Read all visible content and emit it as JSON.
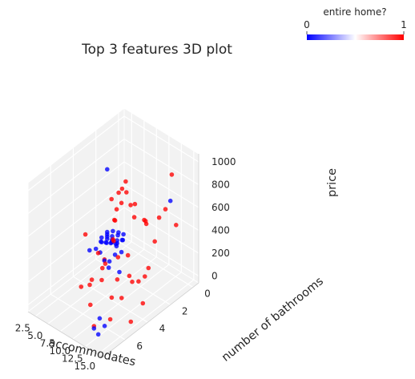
{
  "chart_data": {
    "type": "scatter",
    "projection": "3d",
    "title": "Top 3 features 3D plot",
    "x": {
      "label": "accommodates",
      "lim": [
        1,
        16
      ],
      "ticks": [
        2.5,
        5.0,
        7.5,
        10.0,
        12.5,
        15.0
      ],
      "tick_labels": [
        "2.5",
        "5.0",
        "7.5",
        "10.0",
        "12.5",
        "15.0"
      ]
    },
    "y": {
      "label": "number of bathrooms",
      "lim": [
        -0.5,
        8
      ],
      "ticks": [
        0,
        2,
        4,
        6
      ],
      "tick_labels": [
        "0",
        "2",
        "4",
        "6"
      ]
    },
    "z": {
      "label": "price",
      "lim": [
        -60,
        1070
      ],
      "ticks": [
        0,
        200,
        400,
        600,
        800,
        1000
      ],
      "tick_labels": [
        "0",
        "200",
        "400",
        "600",
        "800",
        "1000"
      ]
    },
    "colorbar": {
      "label": "entire home?",
      "min": 0,
      "max": 1,
      "min_label": "0",
      "max_label": "1",
      "colors": [
        "#0000ff",
        "#ffffff",
        "#ff0000"
      ]
    },
    "grid": true,
    "pane_color": "#f2f2f2",
    "series": [
      {
        "color_value": 1,
        "color": "#ff0000",
        "points": [
          [
            14,
            1.0,
            950
          ],
          [
            12,
            5.0,
            900
          ],
          [
            9,
            3.5,
            850
          ],
          [
            7,
            2.0,
            780
          ],
          [
            10,
            2.5,
            700
          ],
          [
            11,
            3.0,
            650
          ],
          [
            6,
            1.5,
            620
          ],
          [
            8,
            2.0,
            600
          ],
          [
            13,
            3.0,
            680
          ],
          [
            15,
            2.0,
            750
          ],
          [
            16,
            3.0,
            780
          ],
          [
            12,
            4.0,
            420
          ],
          [
            10,
            4.0,
            350
          ],
          [
            13,
            3.5,
            180
          ],
          [
            14,
            4.5,
            280
          ],
          [
            9,
            5.0,
            200
          ],
          [
            8,
            6.0,
            650
          ],
          [
            10,
            6.5,
            300
          ],
          [
            15,
            4.0,
            80
          ],
          [
            12,
            2.5,
            120
          ],
          [
            16,
            5.5,
            60
          ],
          [
            13,
            6.0,
            40
          ],
          [
            11,
            5.0,
            100
          ],
          [
            10,
            3.0,
            110
          ],
          [
            12,
            7.0,
            30
          ],
          [
            9,
            4.0,
            480
          ],
          [
            7,
            3.0,
            520
          ],
          [
            8,
            3.5,
            400
          ],
          [
            6,
            2.5,
            450
          ],
          [
            5,
            1.5,
            500
          ],
          [
            11,
            2.0,
            540
          ],
          [
            14,
            2.5,
            480
          ],
          [
            6,
            4.0,
            280
          ],
          [
            7,
            5.0,
            150
          ],
          [
            9,
            6.0,
            60
          ],
          [
            4,
            1.0,
            560
          ],
          [
            3,
            1.5,
            480
          ],
          [
            16,
            1.5,
            600
          ],
          [
            15,
            3.5,
            350
          ],
          [
            12,
            6.0,
            500
          ],
          [
            5,
            3.0,
            120
          ],
          [
            8,
            4.5,
            240
          ],
          [
            6,
            5.5,
            100
          ],
          [
            11,
            4.5,
            220
          ],
          [
            13,
            5.0,
            150
          ],
          [
            10,
            1.5,
            450
          ]
        ]
      },
      {
        "color_value": 0,
        "color": "#0000ff",
        "points": [
          [
            1,
            1.0,
            60
          ],
          [
            1,
            1.0,
            80
          ],
          [
            1,
            1.5,
            50
          ],
          [
            1,
            1.0,
            40
          ],
          [
            2,
            1.0,
            60
          ],
          [
            2,
            1.0,
            90
          ],
          [
            2,
            1.5,
            70
          ],
          [
            2,
            2.0,
            120
          ],
          [
            1,
            2.0,
            30
          ],
          [
            3,
            1.0,
            80
          ],
          [
            3,
            1.5,
            100
          ],
          [
            2,
            1.0,
            50
          ],
          [
            1,
            0.5,
            70
          ],
          [
            2,
            0.5,
            60
          ],
          [
            3,
            2.0,
            140
          ],
          [
            4,
            1.0,
            110
          ],
          [
            1,
            1.0,
            100
          ],
          [
            2,
            1.0,
            40
          ],
          [
            3,
            1.0,
            55
          ],
          [
            1,
            1.5,
            90
          ],
          [
            4,
            2.0,
            160
          ],
          [
            5,
            2.0,
            180
          ],
          [
            6,
            2.5,
            150
          ],
          [
            3,
            2.5,
            90
          ],
          [
            2,
            3.0,
            120
          ],
          [
            5,
            3.0,
            110
          ],
          [
            4,
            1.5,
            95
          ],
          [
            1,
            1.0,
            650
          ],
          [
            16,
            2.0,
            850
          ],
          [
            13,
            6.5,
            20
          ],
          [
            12,
            7.0,
            10
          ],
          [
            14,
            7.5,
            50
          ],
          [
            12,
            6.5,
            60
          ],
          [
            2,
            0.0,
            30
          ],
          [
            3,
            0.5,
            45
          ],
          [
            1,
            0.0,
            20
          ],
          [
            6,
            3.0,
            130
          ],
          [
            7,
            3.5,
            140
          ],
          [
            8,
            3.0,
            90
          ],
          [
            5,
            1.5,
            70
          ]
        ]
      }
    ]
  }
}
